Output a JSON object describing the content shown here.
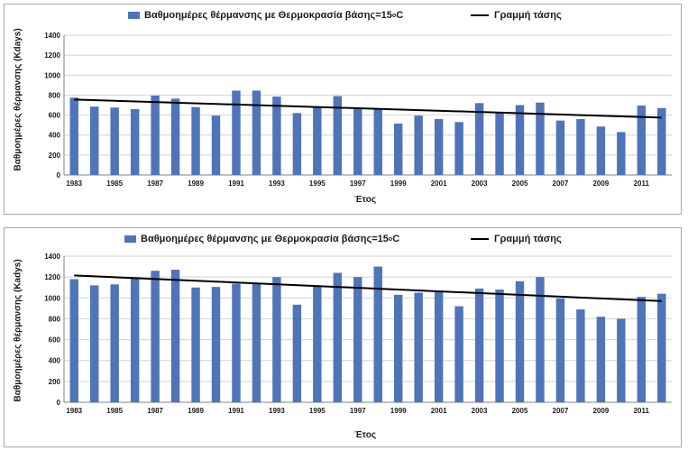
{
  "colors": {
    "bar": "#4f74b8",
    "trend": "#000000",
    "grid": "#d3d3d3"
  },
  "chart_data": [
    {
      "type": "bar",
      "legend_bar": "Βαθμοημέρες θέρμανσης με Θερμοκρασία βάσης=15",
      "legend_bar_sup": "ο",
      "legend_bar_suffix": "C",
      "legend_line": "Γραμμή τάσης",
      "xlabel": "Έτος",
      "ylabel": "Βαθμοημέρες θέρμανσης (Kdays)",
      "ylim": [
        0,
        1400
      ],
      "yticks": [
        0,
        200,
        400,
        600,
        800,
        1000,
        1200,
        1400
      ],
      "xtick_labels": [
        "1983",
        "1985",
        "1987",
        "1989",
        "1991",
        "1993",
        "1995",
        "1997",
        "1999",
        "2001",
        "2003",
        "2005",
        "2007",
        "2009",
        "2011"
      ],
      "grid": true,
      "legend_position": "top",
      "categories": [
        1983,
        1984,
        1985,
        1986,
        1987,
        1988,
        1989,
        1990,
        1991,
        1992,
        1993,
        1994,
        1995,
        1996,
        1997,
        1998,
        1999,
        2000,
        2001,
        2002,
        2003,
        2004,
        2005,
        2006,
        2007,
        2008,
        2009,
        2010,
        2011,
        2012
      ],
      "values": [
        775,
        685,
        675,
        660,
        795,
        765,
        680,
        595,
        845,
        845,
        785,
        620,
        680,
        790,
        665,
        665,
        515,
        595,
        560,
        530,
        720,
        625,
        700,
        725,
        545,
        560,
        485,
        430,
        695,
        670
      ],
      "trend": {
        "start": 755,
        "end": 575
      }
    },
    {
      "type": "bar",
      "legend_bar": "Βαθμοημέρες θέρμανσης με Θερμοκρασία βάσης=15",
      "legend_bar_sup": "ο",
      "legend_bar_suffix": "C",
      "legend_line": "Γραμμή τάσης",
      "xlabel": "Έτος",
      "ylabel": "Βαθμοημέρες θέρμανσης (Kadys)",
      "ylim": [
        0,
        1400
      ],
      "yticks": [
        0,
        200,
        400,
        600,
        800,
        1000,
        1200,
        1400
      ],
      "xtick_labels": [
        "1983",
        "1985",
        "1987",
        "1989",
        "1991",
        "1993",
        "1995",
        "1997",
        "1999",
        "2001",
        "2003",
        "2005",
        "2007",
        "2009",
        "2011"
      ],
      "grid": true,
      "legend_position": "top",
      "categories": [
        1983,
        1984,
        1985,
        1986,
        1987,
        1988,
        1989,
        1990,
        1991,
        1992,
        1993,
        1994,
        1995,
        1996,
        1997,
        1998,
        1999,
        2000,
        2001,
        2002,
        2003,
        2004,
        2005,
        2006,
        2007,
        2008,
        2009,
        2010,
        2011,
        2012
      ],
      "values": [
        1180,
        1120,
        1130,
        1190,
        1260,
        1270,
        1100,
        1105,
        1135,
        1140,
        1200,
        935,
        1110,
        1240,
        1200,
        1300,
        1030,
        1050,
        1070,
        920,
        1090,
        1080,
        1160,
        1200,
        995,
        890,
        820,
        800,
        1010,
        1040
      ],
      "trend": {
        "start": 1215,
        "end": 970
      }
    }
  ]
}
